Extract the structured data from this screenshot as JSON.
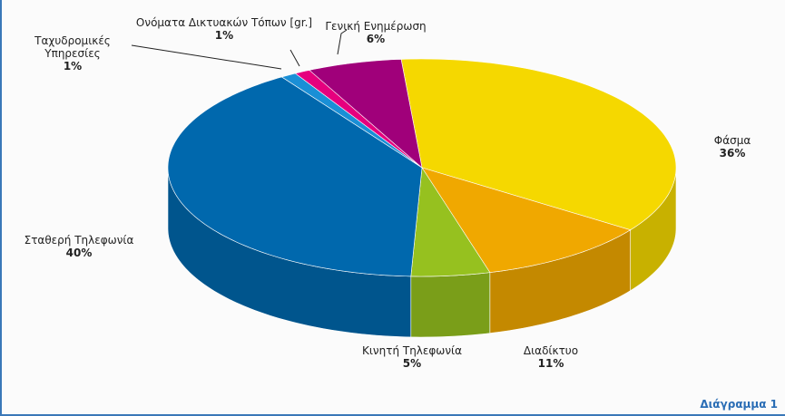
{
  "chart_data": {
    "type": "pie",
    "categories": [
      "Φάσμα",
      "Διαδίκτυο",
      "Κινητή Τηλεφωνία",
      "Σταθερή Τηλεφωνία",
      "Ταχυδρομικές Υπηρεσίες",
      "Ονόματα Δικτυακών Τόπων [gr.]",
      "Γενική Ενημέρωση"
    ],
    "values": [
      36,
      11,
      5,
      40,
      1,
      1,
      6
    ],
    "value_labels": [
      "36%",
      "11%",
      "5%",
      "40%",
      "1%",
      "1%",
      "6%"
    ],
    "colors": [
      "#f5d800",
      "#f0a800",
      "#96c11f",
      "#0068ad",
      "#1a8fd6",
      "#e6007e",
      "#a0007a"
    ],
    "caption": "Διάγραμμα 1"
  }
}
